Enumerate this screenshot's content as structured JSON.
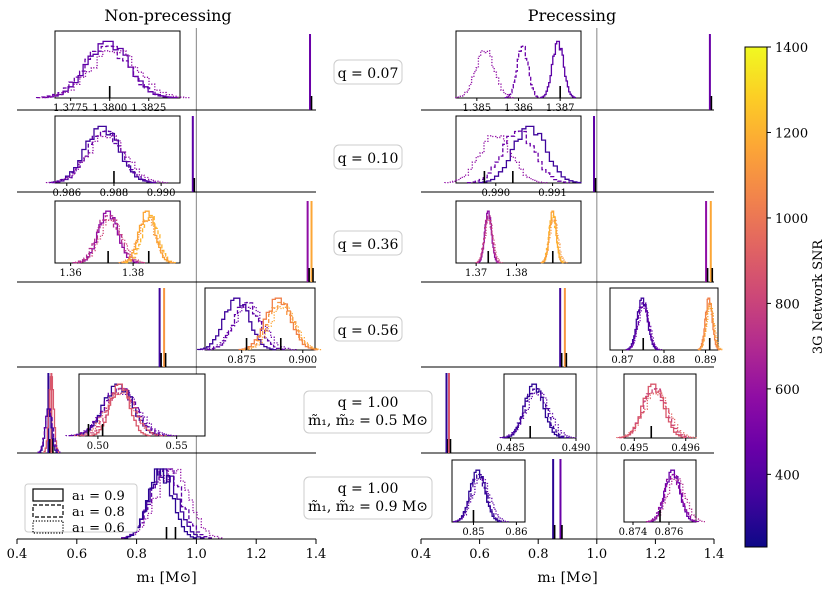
{
  "chart_data": {
    "type": "histogram-grid",
    "xlabel": "m₁ [M⊙]",
    "column_titles": [
      "Non-precessing",
      "Precessing"
    ],
    "colorbar": {
      "label": "3G Network SNR",
      "ticks": [
        400,
        600,
        800,
        1000,
        1200,
        1400
      ],
      "range": [
        230,
        1400
      ],
      "colormap": "plasma"
    },
    "legend": [
      {
        "label": "a₁ = 0.9",
        "style": "solid"
      },
      {
        "label": "a₁ = 0.8",
        "style": "dashed"
      },
      {
        "label": "a₁ = 0.6",
        "style": "dotted"
      }
    ],
    "x_axis": {
      "range": [
        0.4,
        1.4
      ],
      "ticks": [
        0.4,
        0.6,
        0.8,
        1.0,
        1.2,
        1.4
      ],
      "tick_labels": [
        "0.4",
        "0.6",
        "0.8",
        "1.0",
        "1.2",
        "1.4"
      ],
      "vline": 1.0
    },
    "rows": [
      {
        "label": "q = 0.07",
        "main": {
          "left": [
            {
              "m": 1.38,
              "color": "#6a00a8"
            }
          ],
          "right": [
            {
              "m": 1.386,
              "color": "#6a00a8"
            }
          ]
        },
        "insets": [
          {
            "side": "left",
            "xlim": [
              1.3765,
              1.3845
            ],
            "ticks": [
              1.3775,
              1.38,
              1.3825
            ],
            "tick_labels": [
              "1.3775",
              "1.3800",
              "1.3825"
            ],
            "truth": [
              1.38
            ],
            "hists": [
              {
                "mean": 1.3799,
                "sd": 0.0013,
                "color": "#5c01a6",
                "style": "solid"
              },
              {
                "mean": 1.3798,
                "sd": 0.0014,
                "color": "#6a00a8",
                "style": "dashed"
              },
              {
                "mean": 1.3803,
                "sd": 0.0015,
                "color": "#8f0da4",
                "style": "dotted"
              }
            ]
          },
          {
            "side": "right",
            "xlim": [
              1.3845,
              1.3875
            ],
            "ticks": [
              1.385,
              1.386,
              1.387
            ],
            "tick_labels": [
              "1.385",
              "1.386",
              "1.387"
            ],
            "truth": [
              1.387
            ],
            "hists": [
              {
                "mean": 1.38695,
                "sd": 0.00013,
                "color": "#5c01a6",
                "style": "solid"
              },
              {
                "mean": 1.3861,
                "sd": 0.00013,
                "color": "#6a00a8",
                "style": "dashed"
              },
              {
                "mean": 1.3852,
                "sd": 0.00022,
                "color": "#8f0da4",
                "style": "dotted"
              }
            ]
          }
        ]
      },
      {
        "label": "q = 0.10",
        "main": {
          "left": [
            {
              "m": 0.988,
              "color": "#5c01a6"
            }
          ],
          "right": [
            {
              "m": 0.9905,
              "color": "#5c01a6"
            }
          ]
        },
        "insets": [
          {
            "side": "left",
            "xlim": [
              0.9855,
              0.9908
            ],
            "ticks": [
              0.986,
              0.988,
              0.99
            ],
            "tick_labels": [
              "0.986",
              "0.988",
              "0.990"
            ],
            "truth": [
              0.988
            ],
            "hists": [
              {
                "mean": 0.9875,
                "sd": 0.0007,
                "color": "#3e049c",
                "style": "solid"
              },
              {
                "mean": 0.9876,
                "sd": 0.0007,
                "color": "#5c01a6",
                "style": "dashed"
              },
              {
                "mean": 0.9877,
                "sd": 0.0008,
                "color": "#8f0da4",
                "style": "dotted"
              }
            ]
          },
          {
            "side": "right",
            "xlim": [
              0.9893,
              0.9915
            ],
            "ticks": [
              0.99,
              0.991
            ],
            "tick_labels": [
              "0.990",
              "0.991"
            ],
            "truth": [
              0.9898,
              0.9903
            ],
            "hists": [
              {
                "mean": 0.9906,
                "sd": 0.00028,
                "color": "#3e049c",
                "style": "solid"
              },
              {
                "mean": 0.9904,
                "sd": 0.00028,
                "color": "#6a00a8",
                "style": "dashed"
              },
              {
                "mean": 0.99,
                "sd": 0.00028,
                "color": "#8f0da4",
                "style": "dotted"
              }
            ]
          }
        ]
      },
      {
        "label": "q = 0.36",
        "main": {
          "left": [
            {
              "m": 1.372,
              "color": "#8f0da4"
            },
            {
              "m": 1.385,
              "color": "#fca636"
            }
          ],
          "right": [
            {
              "m": 1.373,
              "color": "#8f0da4"
            },
            {
              "m": 1.389,
              "color": "#fca636"
            }
          ]
        },
        "insets": [
          {
            "side": "left",
            "xlim": [
              1.355,
              1.395
            ],
            "ticks": [
              1.36,
              1.38
            ],
            "tick_labels": [
              "1.36",
              "1.38"
            ],
            "truth": [
              1.372,
              1.385
            ],
            "hists": [
              {
                "mean": 1.372,
                "sd": 0.003,
                "color": "#8f0da4",
                "style": "solid"
              },
              {
                "mean": 1.372,
                "sd": 0.0035,
                "color": "#b12a90",
                "style": "dashed"
              },
              {
                "mean": 1.373,
                "sd": 0.0035,
                "color": "#cc4778",
                "style": "dotted"
              },
              {
                "mean": 1.3845,
                "sd": 0.0025,
                "color": "#fca636",
                "style": "solid"
              },
              {
                "mean": 1.3855,
                "sd": 0.0025,
                "color": "#fdb42f",
                "style": "dashed"
              },
              {
                "mean": 1.3845,
                "sd": 0.0028,
                "color": "#f89540",
                "style": "dotted"
              }
            ]
          },
          {
            "side": "right",
            "xlim": [
              1.365,
              1.396
            ],
            "ticks": [
              1.37,
              1.38
            ],
            "tick_labels": [
              "1.37",
              "1.38"
            ],
            "truth": [
              1.373,
              1.389
            ],
            "hists": [
              {
                "mean": 1.373,
                "sd": 0.0008,
                "color": "#8f0da4",
                "style": "solid"
              },
              {
                "mean": 1.373,
                "sd": 0.0009,
                "color": "#b12a90",
                "style": "dashed"
              },
              {
                "mean": 1.3732,
                "sd": 0.001,
                "color": "#cc4778",
                "style": "dotted"
              },
              {
                "mean": 1.389,
                "sd": 0.0008,
                "color": "#fca636",
                "style": "solid"
              },
              {
                "mean": 1.389,
                "sd": 0.0009,
                "color": "#fdb42f",
                "style": "dashed"
              },
              {
                "mean": 1.3893,
                "sd": 0.001,
                "color": "#f89540",
                "style": "dotted"
              }
            ]
          }
        ]
      },
      {
        "label": "q = 0.56",
        "main": {
          "left": [
            {
              "m": 0.877,
              "color": "#3e049c"
            },
            {
              "m": 0.892,
              "color": "#f89540"
            }
          ],
          "right": [
            {
              "m": 0.875,
              "color": "#3e049c"
            },
            {
              "m": 0.891,
              "color": "#f89540"
            }
          ]
        },
        "insets": [
          {
            "side": "left",
            "xlim": [
              0.86,
              0.905
            ],
            "ticks": [
              0.875,
              0.9
            ],
            "tick_labels": [
              "0.875",
              "0.900"
            ],
            "truth": [
              0.877,
              0.891
            ],
            "hists": [
              {
                "mean": 0.873,
                "sd": 0.005,
                "color": "#3e049c",
                "style": "solid"
              },
              {
                "mean": 0.877,
                "sd": 0.005,
                "color": "#5c01a6",
                "style": "dashed"
              },
              {
                "mean": 0.878,
                "sd": 0.006,
                "color": "#6a00a8",
                "style": "dotted"
              },
              {
                "mean": 0.89,
                "sd": 0.005,
                "color": "#f0804a",
                "style": "solid"
              },
              {
                "mean": 0.891,
                "sd": 0.005,
                "color": "#f89540",
                "style": "dashed"
              },
              {
                "mean": 0.892,
                "sd": 0.005,
                "color": "#fca636",
                "style": "dotted"
              }
            ]
          },
          {
            "side": "right",
            "xlim": [
              0.867,
              0.893
            ],
            "ticks": [
              0.87,
              0.88,
              0.89
            ],
            "tick_labels": [
              "0.87",
              "0.88",
              "0.89"
            ],
            "truth": [
              0.875,
              0.891
            ],
            "hists": [
              {
                "mean": 0.8748,
                "sd": 0.0012,
                "color": "#3e049c",
                "style": "solid"
              },
              {
                "mean": 0.875,
                "sd": 0.0012,
                "color": "#5c01a6",
                "style": "dashed"
              },
              {
                "mean": 0.8752,
                "sd": 0.0013,
                "color": "#6a00a8",
                "style": "dotted"
              },
              {
                "mean": 0.8908,
                "sd": 0.0008,
                "color": "#f0804a",
                "style": "solid"
              },
              {
                "mean": 0.891,
                "sd": 0.0008,
                "color": "#f89540",
                "style": "dashed"
              },
              {
                "mean": 0.8912,
                "sd": 0.0009,
                "color": "#fca636",
                "style": "dotted"
              }
            ]
          }
        ]
      },
      {
        "label": "q = 1.00",
        "label2": "m̃₁, m̃₂ = 0.5 M⊙",
        "main": {
          "left": [
            {
              "m": 0.505,
              "color": "#2c0594"
            },
            {
              "m": 0.515,
              "color": "#d8576b"
            }
          ],
          "right": [
            {
              "m": 0.487,
              "color": "#2c0594"
            },
            {
              "m": 0.4955,
              "color": "#d8576b"
            }
          ]
        },
        "insets": [
          {
            "side": "left",
            "xlim": [
              0.488,
              0.568
            ],
            "ticks": [
              0.5,
              0.55
            ],
            "tick_labels": [
              "0.50",
              "0.55"
            ],
            "truth": [
              0.494,
              0.503
            ],
            "hists": [
              {
                "mean": 0.513,
                "sd": 0.009,
                "color": "#2c0594",
                "style": "solid"
              },
              {
                "mean": 0.514,
                "sd": 0.01,
                "color": "#5c01a6",
                "style": "dashed"
              },
              {
                "mean": 0.515,
                "sd": 0.011,
                "color": "#6a00a8",
                "style": "dotted"
              },
              {
                "mean": 0.514,
                "sd": 0.006,
                "color": "#d8576b",
                "style": "solid"
              },
              {
                "mean": 0.515,
                "sd": 0.008,
                "color": "#cc4778",
                "style": "dashed"
              },
              {
                "mean": 0.514,
                "sd": 0.009,
                "color": "#e16462",
                "style": "dotted"
              }
            ]
          },
          {
            "side": "right",
            "xlim": [
              0.4845,
              0.49
            ],
            "ticks": [
              0.485,
              0.49
            ],
            "tick_labels": [
              "0.485",
              "0.490"
            ],
            "truth": [
              0.4865
            ],
            "hists": [
              {
                "mean": 0.4868,
                "sd": 0.0007,
                "color": "#2c0594",
                "style": "solid"
              },
              {
                "mean": 0.4869,
                "sd": 0.0008,
                "color": "#3e049c",
                "style": "dashed"
              },
              {
                "mean": 0.4871,
                "sd": 0.0009,
                "color": "#5c01a6",
                "style": "dotted"
              }
            ]
          },
          {
            "side": "right2",
            "xlim": [
              0.4948,
              0.4962
            ],
            "ticks": [
              0.495,
              0.496
            ],
            "tick_labels": [
              "0.495",
              "0.496"
            ],
            "truth": [
              0.49533
            ],
            "hists": [
              {
                "mean": 0.49537,
                "sd": 0.0002,
                "color": "#d8576b",
                "style": "solid"
              },
              {
                "mean": 0.4954,
                "sd": 0.00022,
                "color": "#cc4778",
                "style": "dashed"
              },
              {
                "mean": 0.49543,
                "sd": 0.00024,
                "color": "#e16462",
                "style": "dotted"
              }
            ]
          }
        ]
      },
      {
        "label": "q = 1.00",
        "label2": "m̃₁, m̃₂ = 0.9 M⊙",
        "main": {
          "left": [
            {
              "m": 0.9,
              "color": "#3e049c"
            }
          ],
          "right": [
            {
              "m": 0.851,
              "color": "#2c0594"
            },
            {
              "m": 0.876,
              "color": "#6a00a8"
            }
          ]
        },
        "insets": [
          {
            "side": "right",
            "xlim": [
              0.845,
              0.862
            ],
            "ticks": [
              0.85,
              0.86
            ],
            "tick_labels": [
              "0.85",
              "0.86"
            ],
            "truth": [
              0.85
            ],
            "hists": [
              {
                "mean": 0.851,
                "sd": 0.0017,
                "color": "#2c0594",
                "style": "solid"
              },
              {
                "mean": 0.8512,
                "sd": 0.0018,
                "color": "#3e049c",
                "style": "dashed"
              },
              {
                "mean": 0.8518,
                "sd": 0.002,
                "color": "#5c01a6",
                "style": "dotted"
              }
            ]
          },
          {
            "side": "right2",
            "xlim": [
              0.8735,
              0.8775
            ],
            "ticks": [
              0.874,
              0.876
            ],
            "tick_labels": [
              "0.874",
              "0.876"
            ],
            "truth": [
              0.8755
            ],
            "hists": [
              {
                "mean": 0.8762,
                "sd": 0.0004,
                "color": "#6a00a8",
                "style": "solid"
              },
              {
                "mean": 0.8762,
                "sd": 0.00045,
                "color": "#8f0da4",
                "style": "dashed"
              },
              {
                "mean": 0.8764,
                "sd": 0.0005,
                "color": "#b12a90",
                "style": "dotted"
              }
            ]
          }
        ]
      }
    ],
    "bottom_left_hists": [
      {
        "mean": 0.89,
        "sd": 0.045,
        "color": "#3e049c",
        "style": "solid"
      },
      {
        "mean": 0.9,
        "sd": 0.05,
        "color": "#5c01a6",
        "style": "dashed"
      },
      {
        "mean": 0.92,
        "sd": 0.055,
        "color": "#8f0da4",
        "style": "dotted"
      },
      {
        "mean": 0.88,
        "sd": 0.04,
        "color": "#2c0594",
        "style": "solid"
      }
    ],
    "bottom_left_truth": [
      0.9,
      0.93
    ]
  }
}
